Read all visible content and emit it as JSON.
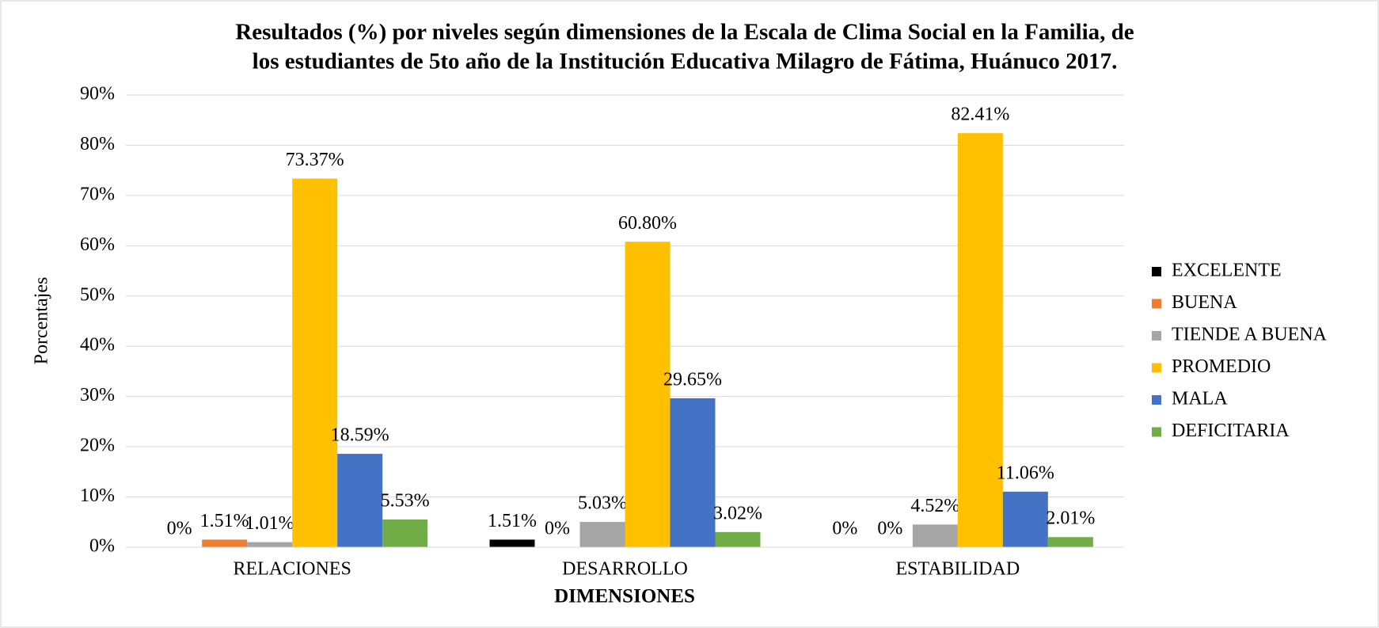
{
  "chart_data": {
    "type": "bar",
    "title": [
      "Resultados (%) por niveles según dimensiones de la Escala de Clima Social en la Familia, de",
      "los estudiantes de 5to año de la Institución Educativa Milagro de Fátima, Huánuco 2017."
    ],
    "x_label": "DIMENSIONES",
    "y_label": "Porcentajes",
    "categories": [
      "RELACIONES",
      "DESARROLLO",
      "ESTABILIDAD"
    ],
    "series": [
      {
        "name": "EXCELENTE",
        "color": "#000000",
        "values": [
          0,
          1.51,
          0
        ],
        "value_labels": [
          "0%",
          "1.51%",
          "0%"
        ]
      },
      {
        "name": "BUENA",
        "color": "#ed7d31",
        "values": [
          1.51,
          0,
          0
        ],
        "value_labels": [
          "1.51%",
          "0%",
          "0%"
        ]
      },
      {
        "name": "TIENDE A BUENA",
        "color": "#a5a5a5",
        "values": [
          1.01,
          5.03,
          4.52
        ],
        "value_labels": [
          "1.01%",
          "5.03%",
          "4.52%"
        ]
      },
      {
        "name": "PROMEDIO",
        "color": "#ffc000",
        "values": [
          73.37,
          60.8,
          82.41
        ],
        "value_labels": [
          "73.37%",
          "60.80%",
          "82.41%"
        ]
      },
      {
        "name": "MALA",
        "color": "#4472c4",
        "values": [
          18.59,
          29.65,
          11.06
        ],
        "value_labels": [
          "18.59%",
          "29.65%",
          "11.06%"
        ]
      },
      {
        "name": "DEFICITARIA",
        "color": "#70ad47",
        "values": [
          5.53,
          3.02,
          2.01
        ],
        "value_labels": [
          "5.53%",
          "3.02%",
          "2.01%"
        ]
      }
    ],
    "ylim": [
      0,
      90
    ],
    "yticks": [
      {
        "value": 0,
        "label": "0%"
      },
      {
        "value": 10,
        "label": "10%"
      },
      {
        "value": 20,
        "label": "20%"
      },
      {
        "value": 30,
        "label": "30%"
      },
      {
        "value": 40,
        "label": "40%"
      },
      {
        "value": 50,
        "label": "50%"
      },
      {
        "value": 60,
        "label": "60%"
      },
      {
        "value": 70,
        "label": "70%"
      },
      {
        "value": 80,
        "label": "80%"
      },
      {
        "value": 90,
        "label": "90%"
      }
    ],
    "grid": true,
    "legend": "right"
  }
}
